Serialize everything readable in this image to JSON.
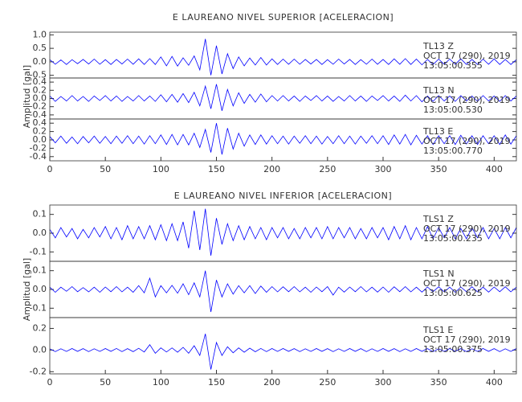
{
  "chart_data": [
    {
      "type": "line",
      "title": "E LAUREANO NIVEL SUPERIOR [ACELERACION]",
      "ylabel": "Amplitud [gal]",
      "xlim": [
        0,
        420
      ],
      "xticks": [
        0,
        50,
        100,
        150,
        200,
        250,
        300,
        350,
        400
      ],
      "x": [
        0,
        5,
        10,
        15,
        20,
        25,
        30,
        35,
        40,
        45,
        50,
        55,
        60,
        65,
        70,
        75,
        80,
        85,
        90,
        95,
        100,
        105,
        110,
        115,
        120,
        125,
        130,
        135,
        140,
        145,
        150,
        155,
        160,
        165,
        170,
        175,
        180,
        185,
        190,
        195,
        200,
        205,
        210,
        215,
        220,
        225,
        230,
        235,
        240,
        245,
        250,
        255,
        260,
        265,
        270,
        275,
        280,
        285,
        290,
        295,
        300,
        305,
        310,
        315,
        320,
        325,
        330,
        335,
        340,
        345,
        350,
        355,
        360,
        365,
        370,
        375,
        380,
        385,
        390,
        395,
        400,
        405,
        410,
        415,
        420
      ],
      "panels": [
        {
          "station": "TL13 Z",
          "date": "OCT 17 (290), 2019",
          "time": "13:05:00.355",
          "color": "#0000ff",
          "ylim": [
            -0.6,
            1.1
          ],
          "yticks": [
            -0.5,
            {
              "value": 0,
              "label": "0.0"
            },
            0.5,
            {
              "value": 1,
              "label": "1.0"
            }
          ],
          "values": [
            0.08,
            -0.09,
            0.07,
            -0.1,
            0.08,
            -0.07,
            0.09,
            -0.08,
            0.1,
            -0.09,
            0.08,
            -0.1,
            0.09,
            -0.08,
            0.1,
            -0.09,
            0.11,
            -0.1,
            0.12,
            -0.1,
            0.18,
            -0.15,
            0.2,
            -0.16,
            0.15,
            -0.13,
            0.22,
            -0.3,
            0.85,
            -0.5,
            0.6,
            -0.45,
            0.3,
            -0.25,
            0.18,
            -0.15,
            0.14,
            -0.12,
            0.16,
            -0.12,
            0.11,
            -0.1,
            0.1,
            -0.09,
            0.1,
            -0.09,
            0.09,
            -0.08,
            0.09,
            -0.1,
            0.08,
            -0.09,
            0.1,
            -0.08,
            0.09,
            -0.1,
            0.08,
            -0.09,
            0.1,
            -0.09,
            0.09,
            -0.1,
            0.11,
            -0.09,
            0.12,
            -0.1,
            0.1,
            -0.11,
            0.09,
            -0.1,
            0.1,
            -0.09,
            0.1,
            -0.09,
            0.11,
            -0.1,
            0.09,
            -0.1,
            0.1,
            -0.09,
            0.11,
            -0.1,
            0.09,
            -0.1,
            0.08
          ]
        },
        {
          "station": "TL13 N",
          "date": "OCT 17 (290), 2019",
          "time": "13:05:00.530",
          "color": "#0000ff",
          "ylim": [
            -0.5,
            0.5
          ],
          "yticks": [
            -0.4,
            -0.2,
            {
              "value": 0,
              "label": "0.0"
            },
            0.2,
            0.4
          ],
          "values": [
            0.06,
            -0.07,
            0.05,
            -0.06,
            0.07,
            -0.06,
            0.05,
            -0.07,
            0.06,
            -0.05,
            0.07,
            -0.06,
            0.06,
            -0.07,
            0.05,
            -0.06,
            0.07,
            -0.06,
            0.06,
            -0.07,
            0.09,
            -0.08,
            0.1,
            -0.09,
            0.12,
            -0.1,
            0.15,
            -0.18,
            0.3,
            -0.25,
            0.35,
            -0.3,
            0.22,
            -0.18,
            0.14,
            -0.12,
            0.1,
            -0.09,
            0.11,
            -0.08,
            0.07,
            -0.06,
            0.07,
            -0.06,
            0.06,
            -0.07,
            0.06,
            -0.05,
            0.07,
            -0.06,
            0.06,
            -0.07,
            0.05,
            -0.06,
            0.07,
            -0.06,
            0.06,
            -0.07,
            0.06,
            -0.05,
            0.07,
            -0.06,
            0.06,
            -0.07,
            0.08,
            -0.06,
            0.07,
            -0.08,
            0.06,
            -0.07,
            0.07,
            -0.06,
            0.06,
            -0.07,
            0.07,
            -0.06,
            0.06,
            -0.07,
            0.07,
            -0.06,
            0.06,
            -0.07,
            0.07,
            -0.06,
            0.06
          ]
        },
        {
          "station": "TL13 E",
          "date": "OCT 17 (290), 2019",
          "time": "13:05:00.770",
          "color": "#0000ff",
          "ylim": [
            -0.5,
            0.5
          ],
          "yticks": [
            -0.4,
            -0.2,
            {
              "value": 0,
              "label": "0.0"
            },
            0.2,
            0.4
          ],
          "values": [
            0.08,
            -0.07,
            0.09,
            -0.08,
            0.07,
            -0.09,
            0.08,
            -0.07,
            0.09,
            -0.08,
            0.08,
            -0.09,
            0.09,
            -0.08,
            0.1,
            -0.09,
            0.09,
            -0.1,
            0.1,
            -0.09,
            0.12,
            -0.11,
            0.13,
            -0.12,
            0.13,
            -0.12,
            0.16,
            -0.18,
            0.25,
            -0.3,
            0.4,
            -0.35,
            0.28,
            -0.22,
            0.16,
            -0.15,
            0.12,
            -0.11,
            0.12,
            -0.1,
            0.1,
            -0.09,
            0.09,
            -0.1,
            0.09,
            -0.08,
            0.1,
            -0.09,
            0.09,
            -0.1,
            0.08,
            -0.09,
            0.1,
            -0.09,
            0.09,
            -0.1,
            0.09,
            -0.08,
            0.1,
            -0.09,
            0.1,
            -0.11,
            0.12,
            -0.1,
            0.13,
            -0.12,
            0.11,
            -0.1,
            0.1,
            -0.11,
            0.1,
            -0.09,
            0.1,
            -0.11,
            0.11,
            -0.1,
            0.1,
            -0.11,
            0.1,
            -0.09,
            0.1,
            -0.11,
            0.12,
            -0.1,
            0.1
          ]
        }
      ]
    },
    {
      "type": "line",
      "title": "E LAUREANO NIVEL INFERIOR [ACELERACION]",
      "ylabel": "Amplitud [gal]",
      "xlim": [
        0,
        420
      ],
      "xticks": [
        0,
        50,
        100,
        150,
        200,
        250,
        300,
        350,
        400
      ],
      "x": [
        0,
        5,
        10,
        15,
        20,
        25,
        30,
        35,
        40,
        45,
        50,
        55,
        60,
        65,
        70,
        75,
        80,
        85,
        90,
        95,
        100,
        105,
        110,
        115,
        120,
        125,
        130,
        135,
        140,
        145,
        150,
        155,
        160,
        165,
        170,
        175,
        180,
        185,
        190,
        195,
        200,
        205,
        210,
        215,
        220,
        225,
        230,
        235,
        240,
        245,
        250,
        255,
        260,
        265,
        270,
        275,
        280,
        285,
        290,
        295,
        300,
        305,
        310,
        315,
        320,
        325,
        330,
        335,
        340,
        345,
        350,
        355,
        360,
        365,
        370,
        375,
        380,
        385,
        390,
        395,
        400,
        405,
        410,
        415,
        420
      ],
      "panels": [
        {
          "station": "TLS1 Z",
          "date": "OCT 17 (290), 2019",
          "time": "13:05:00.235",
          "color": "#0000ff",
          "ylim": [
            -0.15,
            0.15
          ],
          "yticks": [
            -0.1,
            {
              "value": 0,
              "label": "0.0"
            },
            0.1
          ],
          "values": [
            0.02,
            -0.025,
            0.03,
            -0.02,
            0.025,
            -0.03,
            0.02,
            -0.025,
            0.03,
            -0.02,
            0.035,
            -0.03,
            0.03,
            -0.035,
            0.04,
            -0.03,
            0.035,
            -0.03,
            0.04,
            -0.035,
            0.045,
            -0.04,
            0.05,
            -0.04,
            0.06,
            -0.08,
            0.12,
            -0.09,
            0.13,
            -0.12,
            0.08,
            -0.06,
            0.05,
            -0.04,
            0.04,
            -0.035,
            0.035,
            -0.03,
            0.03,
            -0.035,
            0.03,
            -0.025,
            0.03,
            -0.03,
            0.025,
            -0.03,
            0.03,
            -0.025,
            0.03,
            -0.03,
            0.035,
            -0.03,
            0.03,
            -0.025,
            0.03,
            -0.03,
            0.025,
            -0.03,
            0.03,
            -0.025,
            0.03,
            -0.035,
            0.035,
            -0.03,
            0.04,
            -0.035,
            0.03,
            -0.03,
            0.035,
            -0.03,
            0.03,
            -0.025,
            0.03,
            -0.03,
            0.025,
            -0.03,
            0.03,
            -0.025,
            0.03,
            -0.03,
            0.025,
            -0.03,
            0.03,
            -0.025,
            0.03
          ]
        },
        {
          "station": "TLS1 N",
          "date": "OCT 17 (290), 2019",
          "time": "13:05:00.625",
          "color": "#0000ff",
          "ylim": [
            -0.15,
            0.15
          ],
          "yticks": [
            -0.1,
            {
              "value": 0,
              "label": "0.0"
            },
            0.1
          ],
          "values": [
            0.012,
            -0.015,
            0.012,
            -0.01,
            0.015,
            -0.012,
            0.01,
            -0.013,
            0.012,
            -0.015,
            0.013,
            -0.012,
            0.015,
            -0.013,
            0.012,
            -0.015,
            0.02,
            -0.018,
            0.06,
            -0.04,
            0.02,
            -0.018,
            0.022,
            -0.02,
            0.03,
            -0.028,
            0.035,
            -0.04,
            0.1,
            -0.12,
            0.05,
            -0.04,
            0.03,
            -0.025,
            0.02,
            -0.018,
            0.02,
            -0.022,
            0.018,
            -0.015,
            0.015,
            -0.013,
            0.014,
            -0.012,
            0.015,
            -0.013,
            0.012,
            -0.015,
            0.013,
            -0.012,
            0.015,
            -0.03,
            0.012,
            -0.014,
            0.013,
            -0.012,
            0.015,
            -0.013,
            0.012,
            -0.014,
            0.013,
            -0.015,
            0.014,
            -0.012,
            0.015,
            -0.013,
            0.012,
            -0.014,
            0.013,
            -0.012,
            0.014,
            -0.013,
            0.012,
            -0.015,
            0.013,
            -0.012,
            0.014,
            -0.013,
            0.012,
            -0.014,
            0.013,
            -0.012,
            0.014,
            -0.013,
            0.012
          ]
        },
        {
          "station": "TLS1 E",
          "date": "OCT 17 (290), 2019",
          "time": "13:05:00.375",
          "color": "#0000ff",
          "ylim": [
            -0.22,
            0.3
          ],
          "yticks": [
            -0.2,
            {
              "value": 0,
              "label": "0.0"
            },
            0.2
          ],
          "values": [
            0.012,
            -0.014,
            0.012,
            -0.013,
            0.014,
            -0.012,
            0.013,
            -0.014,
            0.012,
            -0.013,
            0.014,
            -0.012,
            0.015,
            -0.014,
            0.013,
            -0.015,
            0.016,
            -0.018,
            0.05,
            -0.03,
            0.02,
            -0.018,
            0.02,
            -0.02,
            0.025,
            -0.03,
            0.04,
            -0.05,
            0.15,
            -0.18,
            0.07,
            -0.05,
            0.03,
            -0.025,
            0.02,
            -0.02,
            0.018,
            -0.016,
            0.015,
            -0.014,
            0.014,
            -0.013,
            0.014,
            -0.012,
            0.013,
            -0.014,
            0.012,
            -0.013,
            0.014,
            -0.012,
            0.013,
            -0.014,
            0.012,
            -0.013,
            0.014,
            -0.012,
            0.013,
            -0.014,
            0.012,
            -0.013,
            0.014,
            -0.012,
            0.013,
            -0.014,
            0.012,
            -0.013,
            0.014,
            -0.012,
            0.013,
            -0.014,
            0.012,
            -0.013,
            0.014,
            -0.012,
            0.013,
            -0.014,
            0.012,
            -0.013,
            0.014,
            -0.012,
            0.013,
            -0.014,
            0.012,
            -0.013,
            0.014
          ]
        }
      ]
    }
  ]
}
